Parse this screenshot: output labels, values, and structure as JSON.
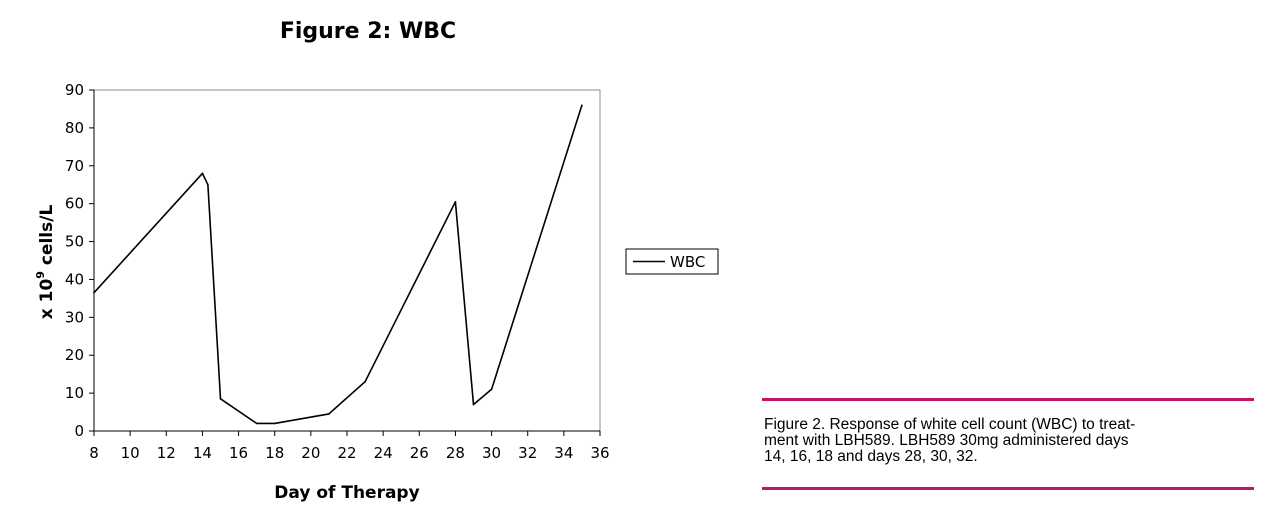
{
  "chart_data": {
    "type": "line",
    "title": "Figure 2: WBC",
    "xlabel": "Day of Therapy",
    "ylabel_prefix": "x 10",
    "ylabel_superscript": "9",
    "ylabel_suffix": " cells/L",
    "xlim": [
      8,
      36
    ],
    "ylim": [
      0,
      90
    ],
    "xticks": [
      8,
      10,
      12,
      14,
      16,
      18,
      20,
      22,
      24,
      26,
      28,
      30,
      32,
      34,
      36
    ],
    "yticks": [
      0,
      10,
      20,
      30,
      40,
      50,
      60,
      70,
      80,
      90
    ],
    "grid": false,
    "legend": "right",
    "series": [
      {
        "name": "WBC",
        "color": "#000000",
        "x": [
          8,
          14,
          14.3,
          15,
          17,
          18,
          21,
          23,
          28,
          29,
          30,
          35
        ],
        "y": [
          36.5,
          68,
          65,
          8.5,
          2,
          2,
          4.5,
          13,
          60.5,
          7,
          11,
          86
        ]
      }
    ]
  },
  "caption": {
    "text": "Figure 2. Response of white cell count (WBC) to treatment with LBH589. LBH589 30mg administered days 14, 16, 18 and days 28, 30, 32.",
    "line1": "Figure 2. Response of white cell count (WBC) to treat-",
    "line2": "ment with LBH589. LBH589 30mg administered days",
    "line3": "14, 16, 18 and days 28, 30, 32.",
    "rule_color": "#c0146e"
  }
}
